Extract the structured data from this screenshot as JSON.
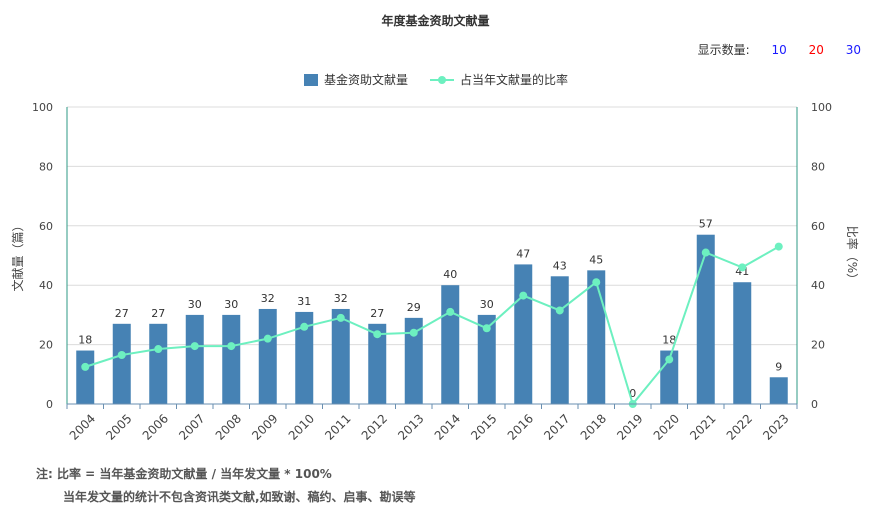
{
  "title": "年度基金资助文献量",
  "display_count": {
    "label": "显示数量:",
    "options": [
      "10",
      "20",
      "30"
    ]
  },
  "notes": {
    "line1": "注:  比率 = 当年基金资助文献量 / 当年发文量 * 100%",
    "line2": "当年发文量的统计不包含资讯类文献,如致谢、稿约、启事、勘误等"
  },
  "colors": {
    "bar": "#4682b4",
    "line": "#6df0c0",
    "axis_right": "#2e9a86"
  },
  "chart_data": {
    "type": "bar+line",
    "categories": [
      "2004",
      "2005",
      "2006",
      "2007",
      "2008",
      "2009",
      "2010",
      "2011",
      "2012",
      "2013",
      "2014",
      "2015",
      "2016",
      "2017",
      "2018",
      "2019",
      "2020",
      "2021",
      "2022",
      "2023"
    ],
    "series": [
      {
        "name": "基金资助文献量",
        "type": "bar",
        "axis": "left",
        "values": [
          18,
          27,
          27,
          30,
          30,
          32,
          31,
          32,
          27,
          29,
          40,
          30,
          47,
          43,
          45,
          0,
          18,
          57,
          41,
          9
        ]
      },
      {
        "name": "占当年文献量的比率",
        "type": "line",
        "axis": "right",
        "values": [
          12.5,
          16.5,
          18.5,
          19.5,
          19.5,
          22,
          26,
          29,
          23.5,
          24,
          31,
          25.5,
          36.5,
          31.5,
          41,
          0,
          15,
          51,
          46,
          53
        ]
      }
    ],
    "ylabel_left": "文献量（篇）",
    "ylabel_right": "比率（%）",
    "ylim_left": [
      0,
      100
    ],
    "ylim_right": [
      0,
      100
    ],
    "yticks": [
      "0",
      "20",
      "40",
      "60",
      "80",
      "100"
    ],
    "grid": true,
    "legend_position": "top-center"
  }
}
